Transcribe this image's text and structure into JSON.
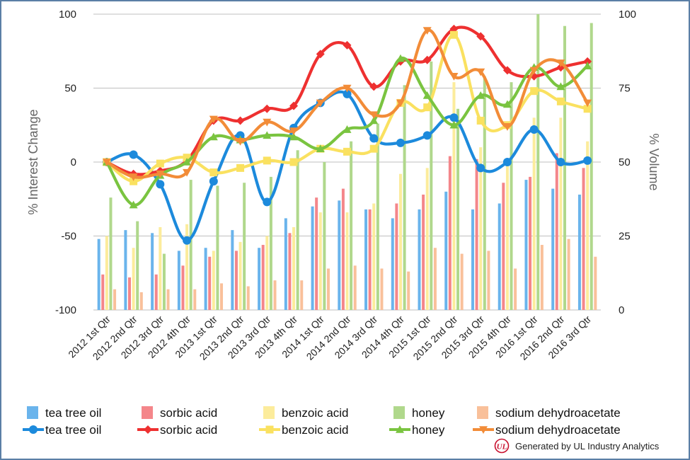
{
  "chart_data": {
    "type": "bar+line",
    "categories": [
      "2012 1st Qtr",
      "2012 2nd Qtr",
      "2012 3rd Qtr",
      "2012 4th Qtr",
      "2013 1st Qtr",
      "2013 2nd Qtr",
      "2013 3rd Qtr",
      "2013 4th Qtr",
      "2014 1st Qtr",
      "2014 2nd Qtr",
      "2014 3rd Qtr",
      "2014 4th Qtr",
      "2015 1st Qtr",
      "2015 2nd Qtr",
      "2015 3rd Qtr",
      "2015 4th Qtr",
      "2016 1st Qtr",
      "2016 2nd Qtr",
      "2016 3rd Qtr"
    ],
    "ylabel": "% Interest Change",
    "ylabel_right": "% Volume",
    "ylim": [
      -100,
      100
    ],
    "ylim_right": [
      0,
      100
    ],
    "yticks": [
      "100",
      "50",
      "0",
      "-50",
      "-100"
    ],
    "yticks_right": [
      "100",
      "75",
      "50",
      "25",
      "0"
    ],
    "bar_series": [
      {
        "name": "tea tree oil",
        "axis": "right",
        "color": "#6ab4ec",
        "values": [
          24,
          27,
          26,
          20,
          21,
          27,
          21,
          31,
          35,
          37,
          34,
          31,
          34,
          40,
          34,
          36,
          44,
          41,
          39
        ]
      },
      {
        "name": "sorbic acid",
        "axis": "right",
        "color": "#f4868a",
        "values": [
          12,
          11,
          12,
          15,
          18,
          20,
          22,
          26,
          38,
          41,
          34,
          36,
          39,
          52,
          51,
          43,
          45,
          53,
          48
        ]
      },
      {
        "name": "benzoic acid",
        "axis": "right",
        "color": "#fcec9c",
        "values": [
          25,
          21,
          28,
          29,
          20,
          23,
          25,
          28,
          33,
          33,
          36,
          46,
          48,
          77,
          55,
          50,
          65,
          65,
          57
        ]
      },
      {
        "name": "honey",
        "axis": "right",
        "color": "#b0d88c",
        "values": [
          38,
          30,
          19,
          44,
          42,
          43,
          45,
          54,
          50,
          57,
          63,
          76,
          84,
          68,
          79,
          77,
          100,
          96,
          97
        ]
      },
      {
        "name": "sodium dehydroacetate",
        "axis": "right",
        "color": "#f9c09a",
        "values": [
          7,
          6,
          7,
          7,
          9,
          8,
          10,
          10,
          14,
          15,
          14,
          13,
          21,
          19,
          20,
          14,
          22,
          24,
          18
        ]
      }
    ],
    "line_series": [
      {
        "name": "tea tree oil",
        "axis": "left",
        "color": "#1c8adc",
        "marker": "circle",
        "values": [
          0,
          5,
          -15,
          -53,
          -13,
          18,
          -27,
          23,
          40,
          46,
          16,
          13,
          18,
          30,
          -4,
          0,
          22,
          0,
          1
        ]
      },
      {
        "name": "sorbic acid",
        "axis": "left",
        "color": "#ee3030",
        "marker": "diamond",
        "values": [
          0,
          -8,
          -6,
          1,
          28,
          28,
          36,
          38,
          73,
          79,
          51,
          68,
          69,
          90,
          85,
          62,
          58,
          64,
          68
        ]
      },
      {
        "name": "benzoic acid",
        "axis": "left",
        "color": "#fae160",
        "marker": "square",
        "values": [
          0,
          -13,
          -1,
          3,
          -7,
          -4,
          1,
          0,
          9,
          7,
          9,
          40,
          37,
          86,
          28,
          25,
          48,
          41,
          36
        ]
      },
      {
        "name": "honey",
        "axis": "left",
        "color": "#7ac440",
        "marker": "triangle-up",
        "values": [
          0,
          -29,
          -9,
          0,
          17,
          15,
          18,
          17,
          9,
          22,
          28,
          70,
          45,
          25,
          45,
          39,
          64,
          51,
          65
        ]
      },
      {
        "name": "sodium dehydroacetate",
        "axis": "left",
        "color": "#f28c38",
        "marker": "triangle-down",
        "values": [
          0,
          -10,
          -8,
          -7,
          29,
          14,
          27,
          21,
          40,
          50,
          32,
          40,
          89,
          58,
          61,
          24,
          62,
          67,
          40
        ]
      }
    ],
    "legend_position": "bottom",
    "grid": "horizontal"
  },
  "legend": {
    "bars": [
      "tea tree oil",
      "sorbic acid",
      "benzoic acid",
      "honey",
      "sodium dehydroacetate"
    ],
    "lines": [
      "tea tree oil",
      "sorbic acid",
      "benzoic acid",
      "honey",
      "sodium dehydroacetate"
    ]
  },
  "footer": {
    "logo_text": "UL",
    "credit": "Generated by UL Industry Analytics",
    "logo_color": "#c8102e"
  }
}
